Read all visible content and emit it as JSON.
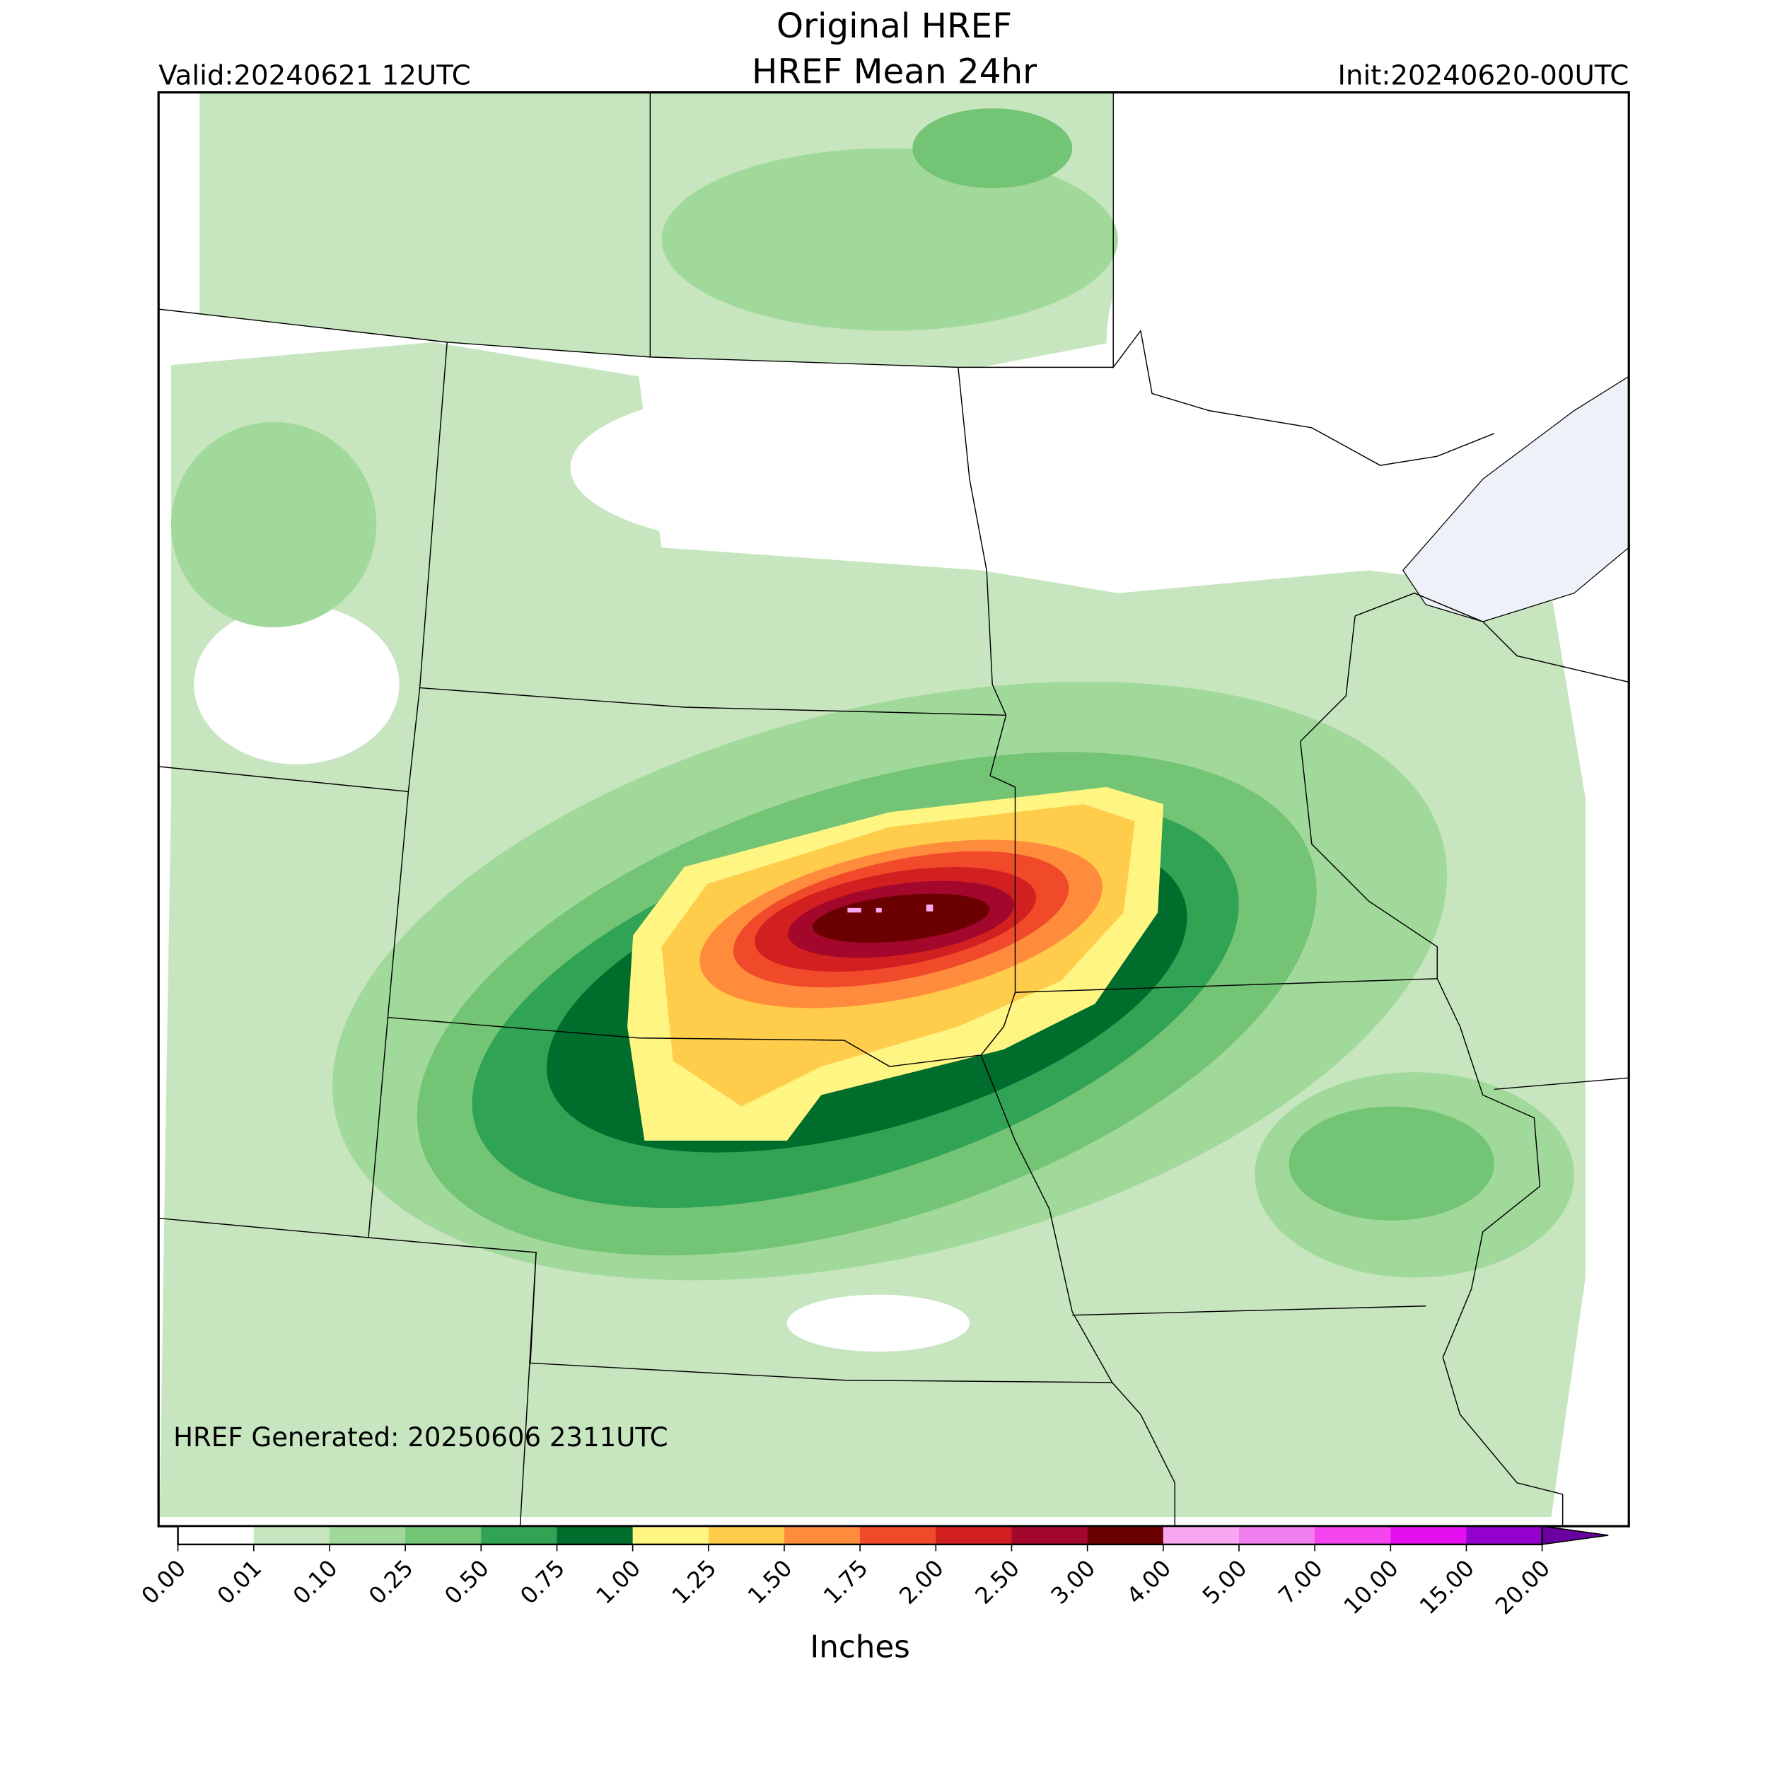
{
  "header": {
    "title": "Original HREF",
    "subtitle": "HREF Mean 24hr",
    "valid": "Valid:20240621 12UTC",
    "init": "Init:20240620-00UTC"
  },
  "footer": {
    "generated": "HREF Generated: 20250606 2311UTC"
  },
  "colorbar": {
    "label": "Inches",
    "ticks": [
      {
        "value": 0,
        "label": "0.00"
      },
      {
        "value": 0.01,
        "label": "0.01"
      },
      {
        "value": 0.1,
        "label": "0.10"
      },
      {
        "value": 0.25,
        "label": "0.25"
      },
      {
        "value": 0.5,
        "label": "0.50"
      },
      {
        "value": 0.75,
        "label": "0.75"
      },
      {
        "value": 1,
        "label": "1.00"
      },
      {
        "value": 1.25,
        "label": "1.25"
      },
      {
        "value": 1.5,
        "label": "1.50"
      },
      {
        "value": 1.75,
        "label": "1.75"
      },
      {
        "value": 2,
        "label": "2.00"
      },
      {
        "value": 2.5,
        "label": "2.50"
      },
      {
        "value": 3,
        "label": "3.00"
      },
      {
        "value": 4,
        "label": "4.00"
      },
      {
        "value": 5,
        "label": "5.00"
      },
      {
        "value": 7,
        "label": "7.00"
      },
      {
        "value": 10,
        "label": "10.00"
      },
      {
        "value": 15,
        "label": "15.00"
      },
      {
        "value": 20,
        "label": "20.00"
      }
    ],
    "colors": [
      "#ffffff",
      "#c7e6c0",
      "#a1d99b",
      "#74c476",
      "#31a354",
      "#006d2c",
      "#fff582",
      "#ffcc4c",
      "#ff8c3c",
      "#f14a2a",
      "#d21f1f",
      "#a3082c",
      "#6b0000",
      "#f8a8f0",
      "#f27ff0",
      "#f545f0",
      "#e510ef",
      "#9400cd"
    ],
    "extend_color": "#6a00a0"
  }
}
